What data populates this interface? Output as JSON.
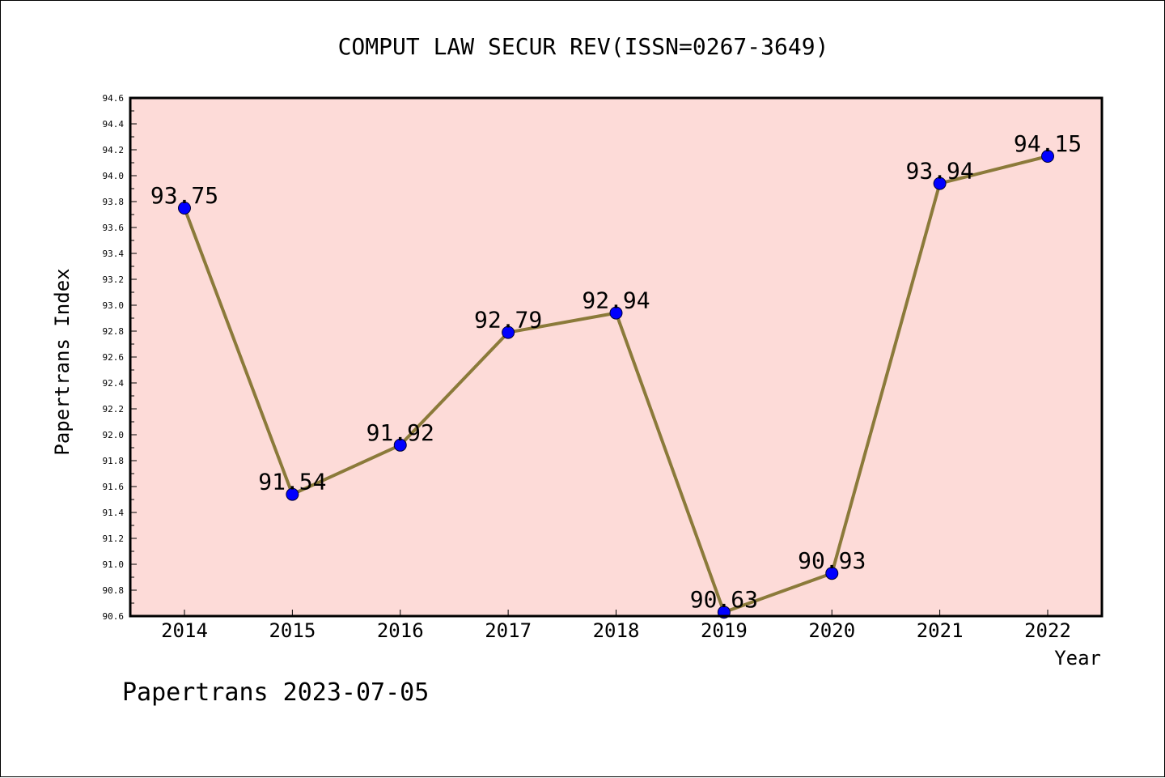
{
  "chart_data": {
    "type": "line",
    "title": "COMPUT LAW SECUR REV(ISSN=0267-3649)",
    "xlabel": "Year",
    "ylabel": "Papertrans Index",
    "categories": [
      "2014",
      "2015",
      "2016",
      "2017",
      "2018",
      "2019",
      "2020",
      "2021",
      "2022"
    ],
    "values": [
      93.75,
      91.54,
      91.92,
      92.79,
      92.94,
      90.63,
      90.93,
      93.94,
      94.15
    ],
    "data_labels": [
      "93.75",
      "91.54",
      "91.92",
      "92.79",
      "92.94",
      "90.63",
      "90.93",
      "93.94",
      "94.15"
    ],
    "ylim": [
      90.6,
      94.6
    ],
    "yticks": [
      "90.6",
      "90.8",
      "91.0",
      "91.2",
      "91.4",
      "91.6",
      "91.8",
      "92.0",
      "92.2",
      "92.4",
      "92.6",
      "92.8",
      "93.0",
      "93.2",
      "93.4",
      "93.6",
      "93.8",
      "94.0",
      "94.2",
      "94.4",
      "94.6"
    ],
    "grid": false,
    "legend": "none",
    "colors": {
      "plot_background": "#fddbd8",
      "line": "#8b7a3a",
      "marker": "#0000ff"
    }
  },
  "footer": "Papertrans 2023-07-05"
}
